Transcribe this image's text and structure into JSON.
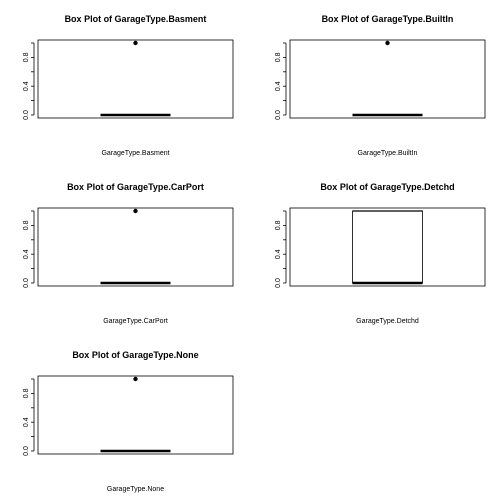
{
  "chart_data": [
    {
      "type": "boxplot",
      "title": "Box Plot of  GarageType.Basment",
      "xlabel": "GarageType.Basment",
      "ylim": [
        0,
        1
      ],
      "yticks": [
        "0.0",
        "0.4",
        "0.8"
      ],
      "box": {
        "min": 0,
        "q1": 0,
        "median": 0,
        "q3": 0,
        "max": 0
      },
      "outliers": [
        1
      ]
    },
    {
      "type": "boxplot",
      "title": "Box Plot of  GarageType.BuiltIn",
      "xlabel": "GarageType.BuiltIn",
      "ylim": [
        0,
        1
      ],
      "yticks": [
        "0.0",
        "0.4",
        "0.8"
      ],
      "box": {
        "min": 0,
        "q1": 0,
        "median": 0,
        "q3": 0,
        "max": 0
      },
      "outliers": [
        1
      ]
    },
    {
      "type": "boxplot",
      "title": "Box Plot of  GarageType.CarPort",
      "xlabel": "GarageType.CarPort",
      "ylim": [
        0,
        1
      ],
      "yticks": [
        "0.0",
        "0.4",
        "0.8"
      ],
      "box": {
        "min": 0,
        "q1": 0,
        "median": 0,
        "q3": 0,
        "max": 0
      },
      "outliers": [
        1
      ]
    },
    {
      "type": "boxplot",
      "title": "Box Plot of  GarageType.Detchd",
      "xlabel": "GarageType.Detchd",
      "ylim": [
        0,
        1
      ],
      "yticks": [
        "0.0",
        "0.4",
        "0.8"
      ],
      "box": {
        "min": 0,
        "q1": 0,
        "median": 0,
        "q3": 1,
        "max": 1
      },
      "outliers": []
    },
    {
      "type": "boxplot",
      "title": "Box Plot of  GarageType.None",
      "xlabel": "GarageType.None",
      "ylim": [
        0,
        1
      ],
      "yticks": [
        "0.0",
        "0.4",
        "0.8"
      ],
      "box": {
        "min": 0,
        "q1": 0,
        "median": 0,
        "q3": 0,
        "max": 0
      },
      "outliers": [
        1
      ]
    }
  ]
}
